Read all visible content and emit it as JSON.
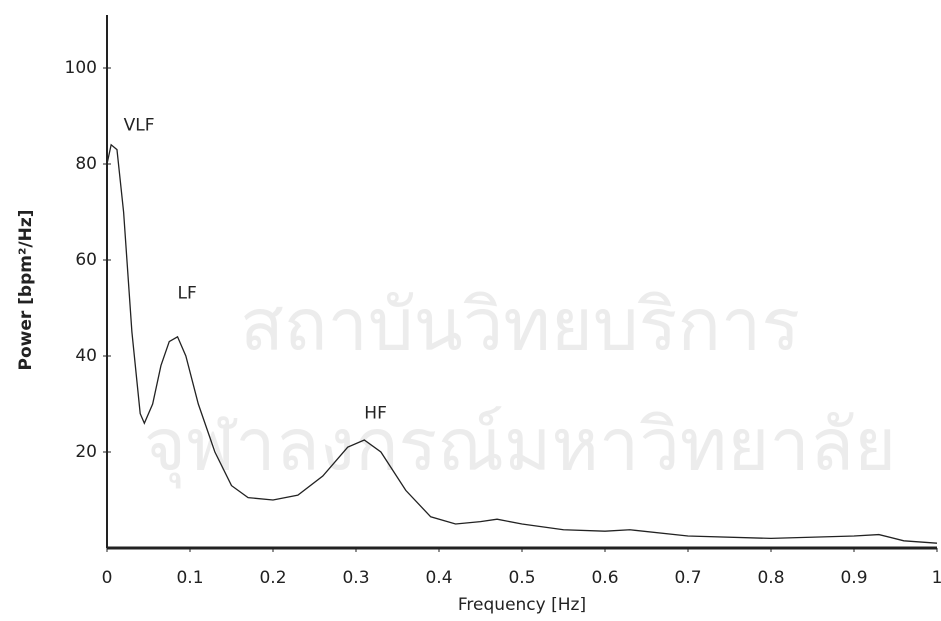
{
  "watermark": [
    "สถาบันวิทยบริการ",
    "จุฬาลงกรณ์มหาวิทยาลัย"
  ],
  "chart_data": {
    "type": "line",
    "xlabel": "Frequency [Hz]",
    "ylabel": "Power [bpm²/Hz]",
    "x": [
      0.0,
      0.005,
      0.012,
      0.02,
      0.03,
      0.04,
      0.045,
      0.055,
      0.065,
      0.075,
      0.085,
      0.095,
      0.11,
      0.13,
      0.15,
      0.17,
      0.2,
      0.23,
      0.26,
      0.29,
      0.31,
      0.33,
      0.36,
      0.39,
      0.42,
      0.45,
      0.47,
      0.5,
      0.55,
      0.6,
      0.63,
      0.7,
      0.8,
      0.9,
      0.93,
      0.96,
      1.0
    ],
    "series": [
      {
        "color": "#222222",
        "values": [
          80,
          84,
          83,
          70,
          45,
          28,
          26,
          30,
          38,
          43,
          44,
          40,
          30,
          20,
          13,
          10.5,
          10,
          11,
          15,
          21,
          22.5,
          20,
          12,
          6.5,
          5,
          5.5,
          6,
          5,
          3.8,
          3.5,
          3.8,
          2.5,
          2,
          2.5,
          2.8,
          1.5,
          1
        ]
      }
    ],
    "annotations": [
      {
        "text": "VLF",
        "x": 0.02,
        "y": 88
      },
      {
        "text": "LF",
        "x": 0.085,
        "y": 53
      },
      {
        "text": "HF",
        "x": 0.31,
        "y": 28
      }
    ],
    "xlim": [
      0,
      1
    ],
    "ylim": [
      0,
      110
    ],
    "xticks": [
      0,
      0.1,
      0.2,
      0.3,
      0.4,
      0.5,
      0.6,
      0.7,
      0.8,
      0.9,
      1
    ],
    "yticks": [
      20,
      40,
      60,
      80,
      100
    ]
  }
}
